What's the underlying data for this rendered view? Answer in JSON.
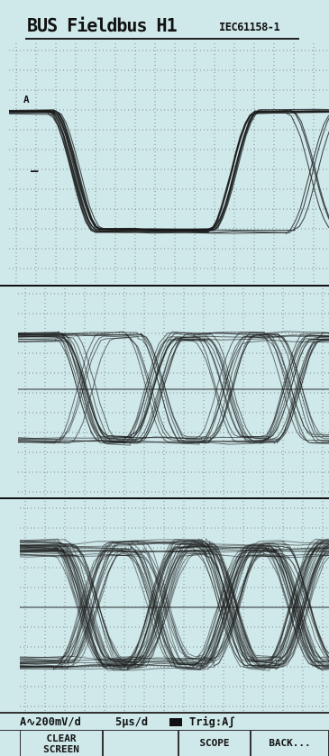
{
  "header": {
    "title": "BUS Fieldbus H1",
    "standard": "IEC61158-1"
  },
  "panels": [
    {
      "channel_marker": "A",
      "ground_marker": "–"
    },
    {
      "channel_marker": "",
      "ground_marker": ""
    },
    {
      "channel_marker": "",
      "ground_marker": ""
    }
  ],
  "status": {
    "channel_scale": "A∿200mV/d",
    "timebase": "5µs/d",
    "trigger": "Trig:Aʃ"
  },
  "softkeys": {
    "clear_line1": "CLEAR",
    "clear_line2": "SCREEN",
    "blank": "",
    "scope": "SCOPE",
    "back": "BACK..."
  },
  "colors": {
    "screen_bg": "#cfe8ea",
    "grid_dot": "#7a8c8e",
    "trace": "#1a1a1a",
    "text": "#111111"
  }
}
